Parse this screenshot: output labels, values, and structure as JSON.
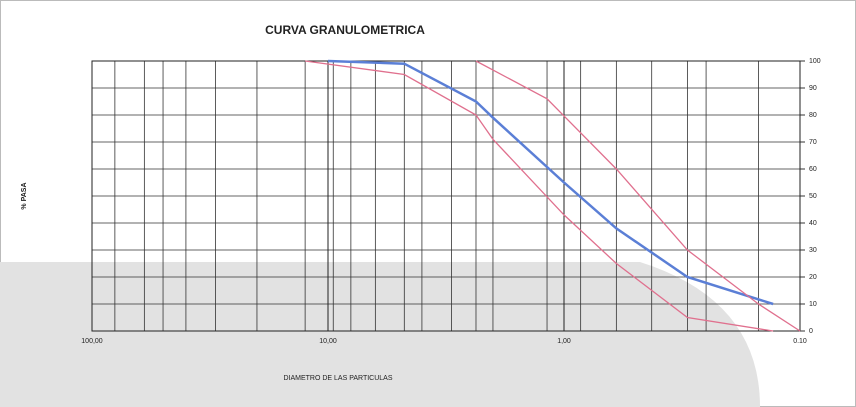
{
  "chart_data": {
    "type": "line",
    "title": "CURVA GRANULOMETRICA",
    "ylabel": "% PASA",
    "xlabel": "DIAMETRO DE LAS PARTICULAS",
    "xscale": "log",
    "xlim": [
      100,
      0.1
    ],
    "xticks": [
      {
        "value": 100,
        "label": "100,00"
      },
      {
        "value": 10,
        "label": "10,00"
      },
      {
        "value": 1,
        "label": "1,00"
      },
      {
        "value": 0.1,
        "label": "0.10"
      }
    ],
    "xgrid": [
      80,
      60,
      50,
      40,
      30,
      20,
      12.5,
      9.5,
      8,
      6.3,
      4.75,
      4,
      3,
      2.36,
      2,
      1.18,
      0.85,
      0.6,
      0.425,
      0.3,
      0.25,
      0.15
    ],
    "ylim": [
      0,
      100
    ],
    "yticks": [
      0,
      10,
      20,
      30,
      40,
      50,
      60,
      70,
      80,
      90,
      100
    ],
    "grid": true,
    "series": [
      {
        "color": "#5b7fd6",
        "x": [
          10,
          4.75,
          2.36,
          2,
          1,
          0.6,
          0.3,
          0.13
        ],
        "values": [
          100,
          99,
          85,
          79,
          55,
          38,
          20,
          10
        ]
      },
      {
        "color": "#e0708e",
        "x": [
          2.36,
          1.18,
          0.6,
          0.3,
          0.15,
          0.1
        ],
        "values": [
          100,
          86,
          60,
          30,
          10,
          0
        ]
      },
      {
        "color": "#e0708e",
        "x": [
          12.5,
          4.75,
          2.36,
          2,
          1,
          0.6,
          0.3,
          0.13
        ],
        "values": [
          100,
          95,
          80,
          71,
          43,
          25,
          5,
          0
        ]
      }
    ]
  }
}
